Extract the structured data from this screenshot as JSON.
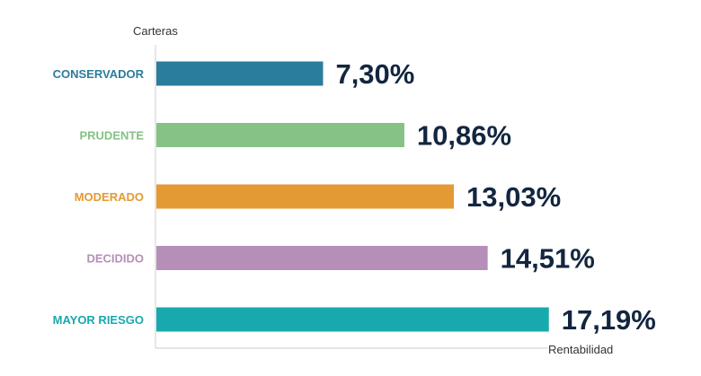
{
  "chart_data": {
    "type": "bar",
    "orientation": "horizontal",
    "ylabel": "Carteras",
    "xlabel": "Rentabilidad",
    "categories": [
      "CONSERVADOR",
      "PRUDENTE",
      "MODERADO",
      "DECIDIDO",
      "MAYOR RIESGO"
    ],
    "values": [
      7.3,
      10.86,
      13.03,
      14.51,
      17.19
    ],
    "value_labels": [
      "7,30%",
      "10,86%",
      "13,03%",
      "14,51%",
      "17,19%"
    ],
    "colors": [
      "#2a7d9c",
      "#86c186",
      "#e39a34",
      "#b68fb8",
      "#17a9ae"
    ],
    "xlim": [
      0,
      18.5
    ],
    "grid": false,
    "legend": "none",
    "text_color": "#12263f",
    "axis_color": "#cccccc",
    "title_color": "#333333"
  }
}
